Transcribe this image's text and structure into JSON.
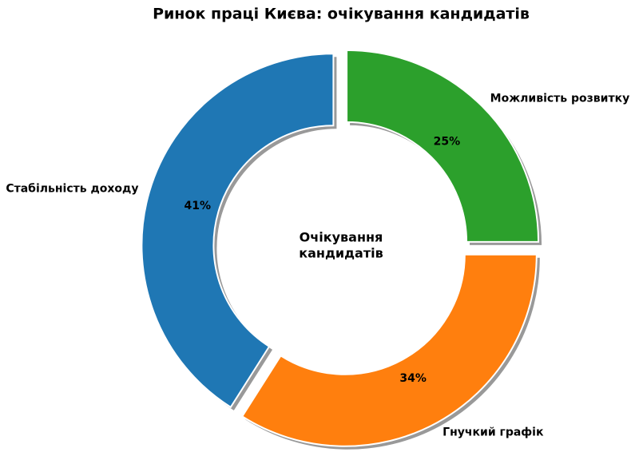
{
  "chart_data": {
    "type": "donut",
    "title": "Ринок праці Києва: очікування кандидатів",
    "center_text": [
      "Очікування",
      "кандидатів"
    ],
    "categories": [
      "Можливість розвитку",
      "Гнучкий графік",
      "Стабільність доходу"
    ],
    "values": [
      25,
      34,
      41
    ],
    "value_labels": [
      "25%",
      "34%",
      "41%"
    ],
    "colors": [
      "#2ca02c",
      "#ff7f0e",
      "#1f77b4"
    ]
  }
}
